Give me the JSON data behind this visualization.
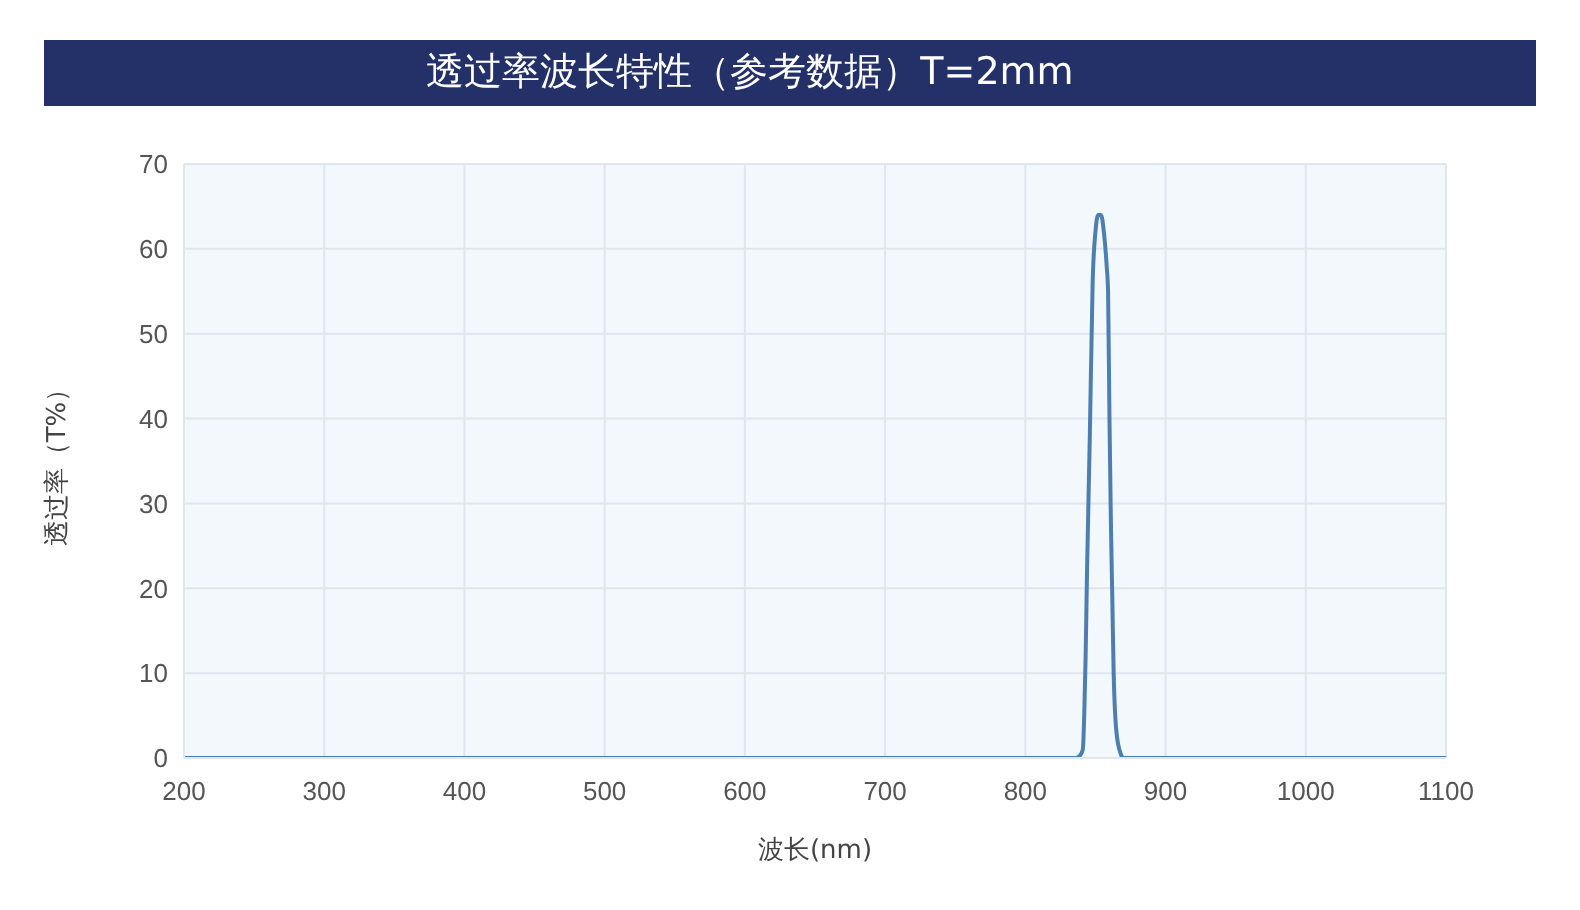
{
  "chart_data": {
    "type": "line",
    "title": "透过率波长特性（参考数据）T=2mm",
    "xlabel": "波长(nm)",
    "ylabel": "透过率（T%）",
    "x": [
      200,
      836,
      839,
      841,
      842,
      843,
      844,
      846,
      848,
      850,
      852,
      854,
      856,
      858,
      859,
      860,
      861,
      862,
      863,
      865,
      868,
      870,
      1100
    ],
    "series": [
      {
        "color": "#4d7eb0",
        "values": [
          0,
          0,
          0.3,
          1,
          5,
          12,
          22,
          38,
          56,
          62,
          64,
          64,
          62,
          58,
          55,
          40,
          28,
          19,
          10,
          3,
          0.5,
          0,
          0
        ]
      }
    ],
    "xlim": [
      200,
      1100
    ],
    "xticks": [
      200,
      300,
      400,
      500,
      600,
      700,
      800,
      900,
      1000,
      1100
    ],
    "ylim": [
      0,
      70
    ],
    "yticks": [
      0,
      10,
      20,
      30,
      40,
      50,
      60,
      70
    ],
    "grid": true,
    "marker": "none",
    "line_style": "solid"
  }
}
